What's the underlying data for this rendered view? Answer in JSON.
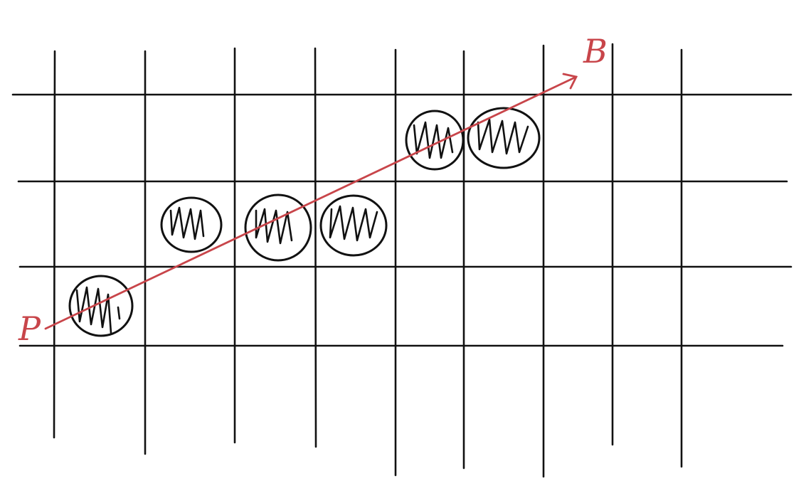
{
  "labels": {
    "start": "P",
    "end": "B"
  },
  "colors": {
    "ink": "#111111",
    "ray": "#c8454a",
    "background": "#ffffff"
  },
  "grid": {
    "columns": 8,
    "rows": 3
  },
  "marked_cells": [
    {
      "col": 0,
      "row": 2
    },
    {
      "col": 1,
      "row": 1
    },
    {
      "col": 2,
      "row": 1
    },
    {
      "col": 3,
      "row": 1
    },
    {
      "col": 4,
      "row": 0
    },
    {
      "col": 5,
      "row": 0
    }
  ]
}
